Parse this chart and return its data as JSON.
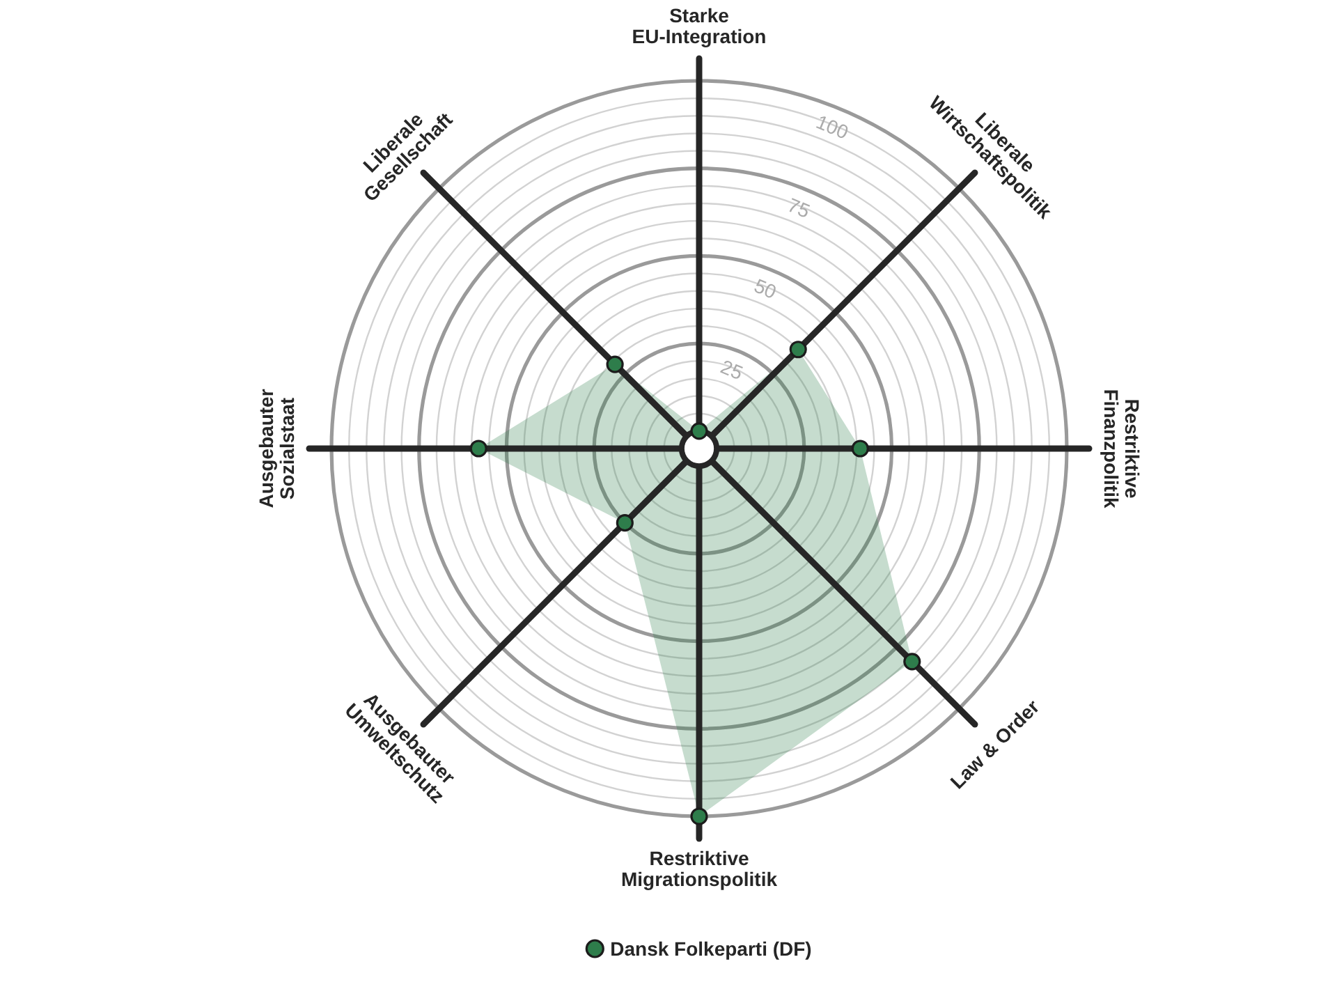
{
  "chart_data": {
    "type": "radar",
    "categories": [
      "Starke\nEU-Integration",
      "Liberale\nWirtschaftspolitik",
      "Restriktive\nFinanzpolitik",
      "Law & Order",
      "Restriktive\nMigrationspolitik",
      "Ausgebauter\nUmweltschutz",
      "Ausgebauter\nSozialstaat",
      "Liberale\nGesellschaft"
    ],
    "series": [
      {
        "name": "Dansk Folkeparti (DF)",
        "color": "#2e7d4b",
        "values": [
          0,
          35,
          41,
          81,
          100,
          25,
          58,
          29
        ]
      }
    ],
    "ylim": [
      -5,
      100
    ],
    "yticks": [
      25,
      50,
      75,
      100
    ],
    "grid": true,
    "legend": "bottom",
    "marker": "circle"
  }
}
